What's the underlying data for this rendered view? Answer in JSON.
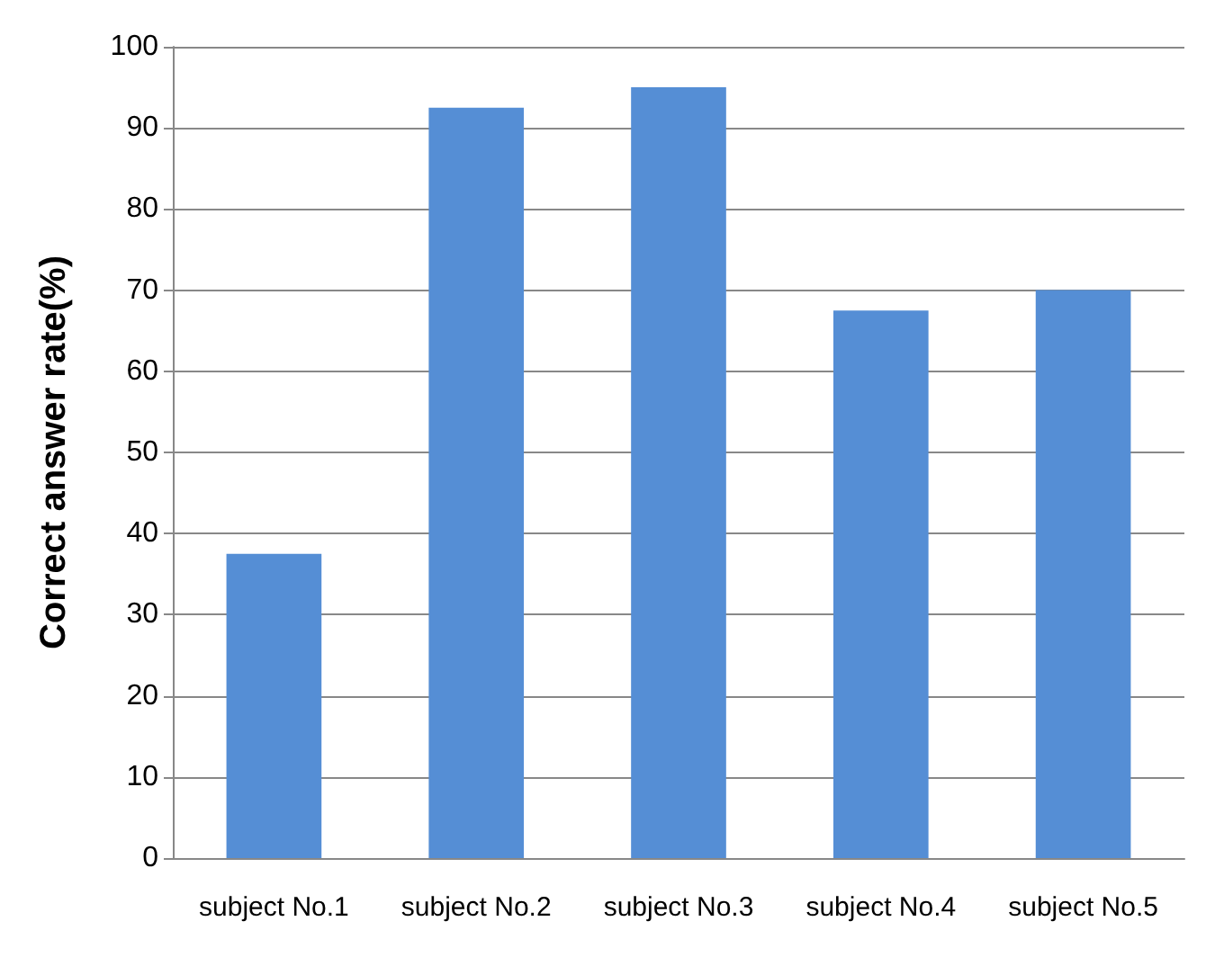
{
  "chart_data": {
    "type": "bar",
    "ylabel": "Correct answer rate(%)",
    "categories": [
      "subject No.1",
      "subject No.2",
      "subject No.3",
      "subject No.4",
      "subject No.5"
    ],
    "values": [
      37.5,
      92.5,
      95,
      67.5,
      70
    ],
    "color": "#558ed5",
    "ylim": [
      0,
      100
    ],
    "yticks": [
      0,
      10,
      20,
      30,
      40,
      50,
      60,
      70,
      80,
      90,
      100
    ],
    "grid": "y"
  }
}
